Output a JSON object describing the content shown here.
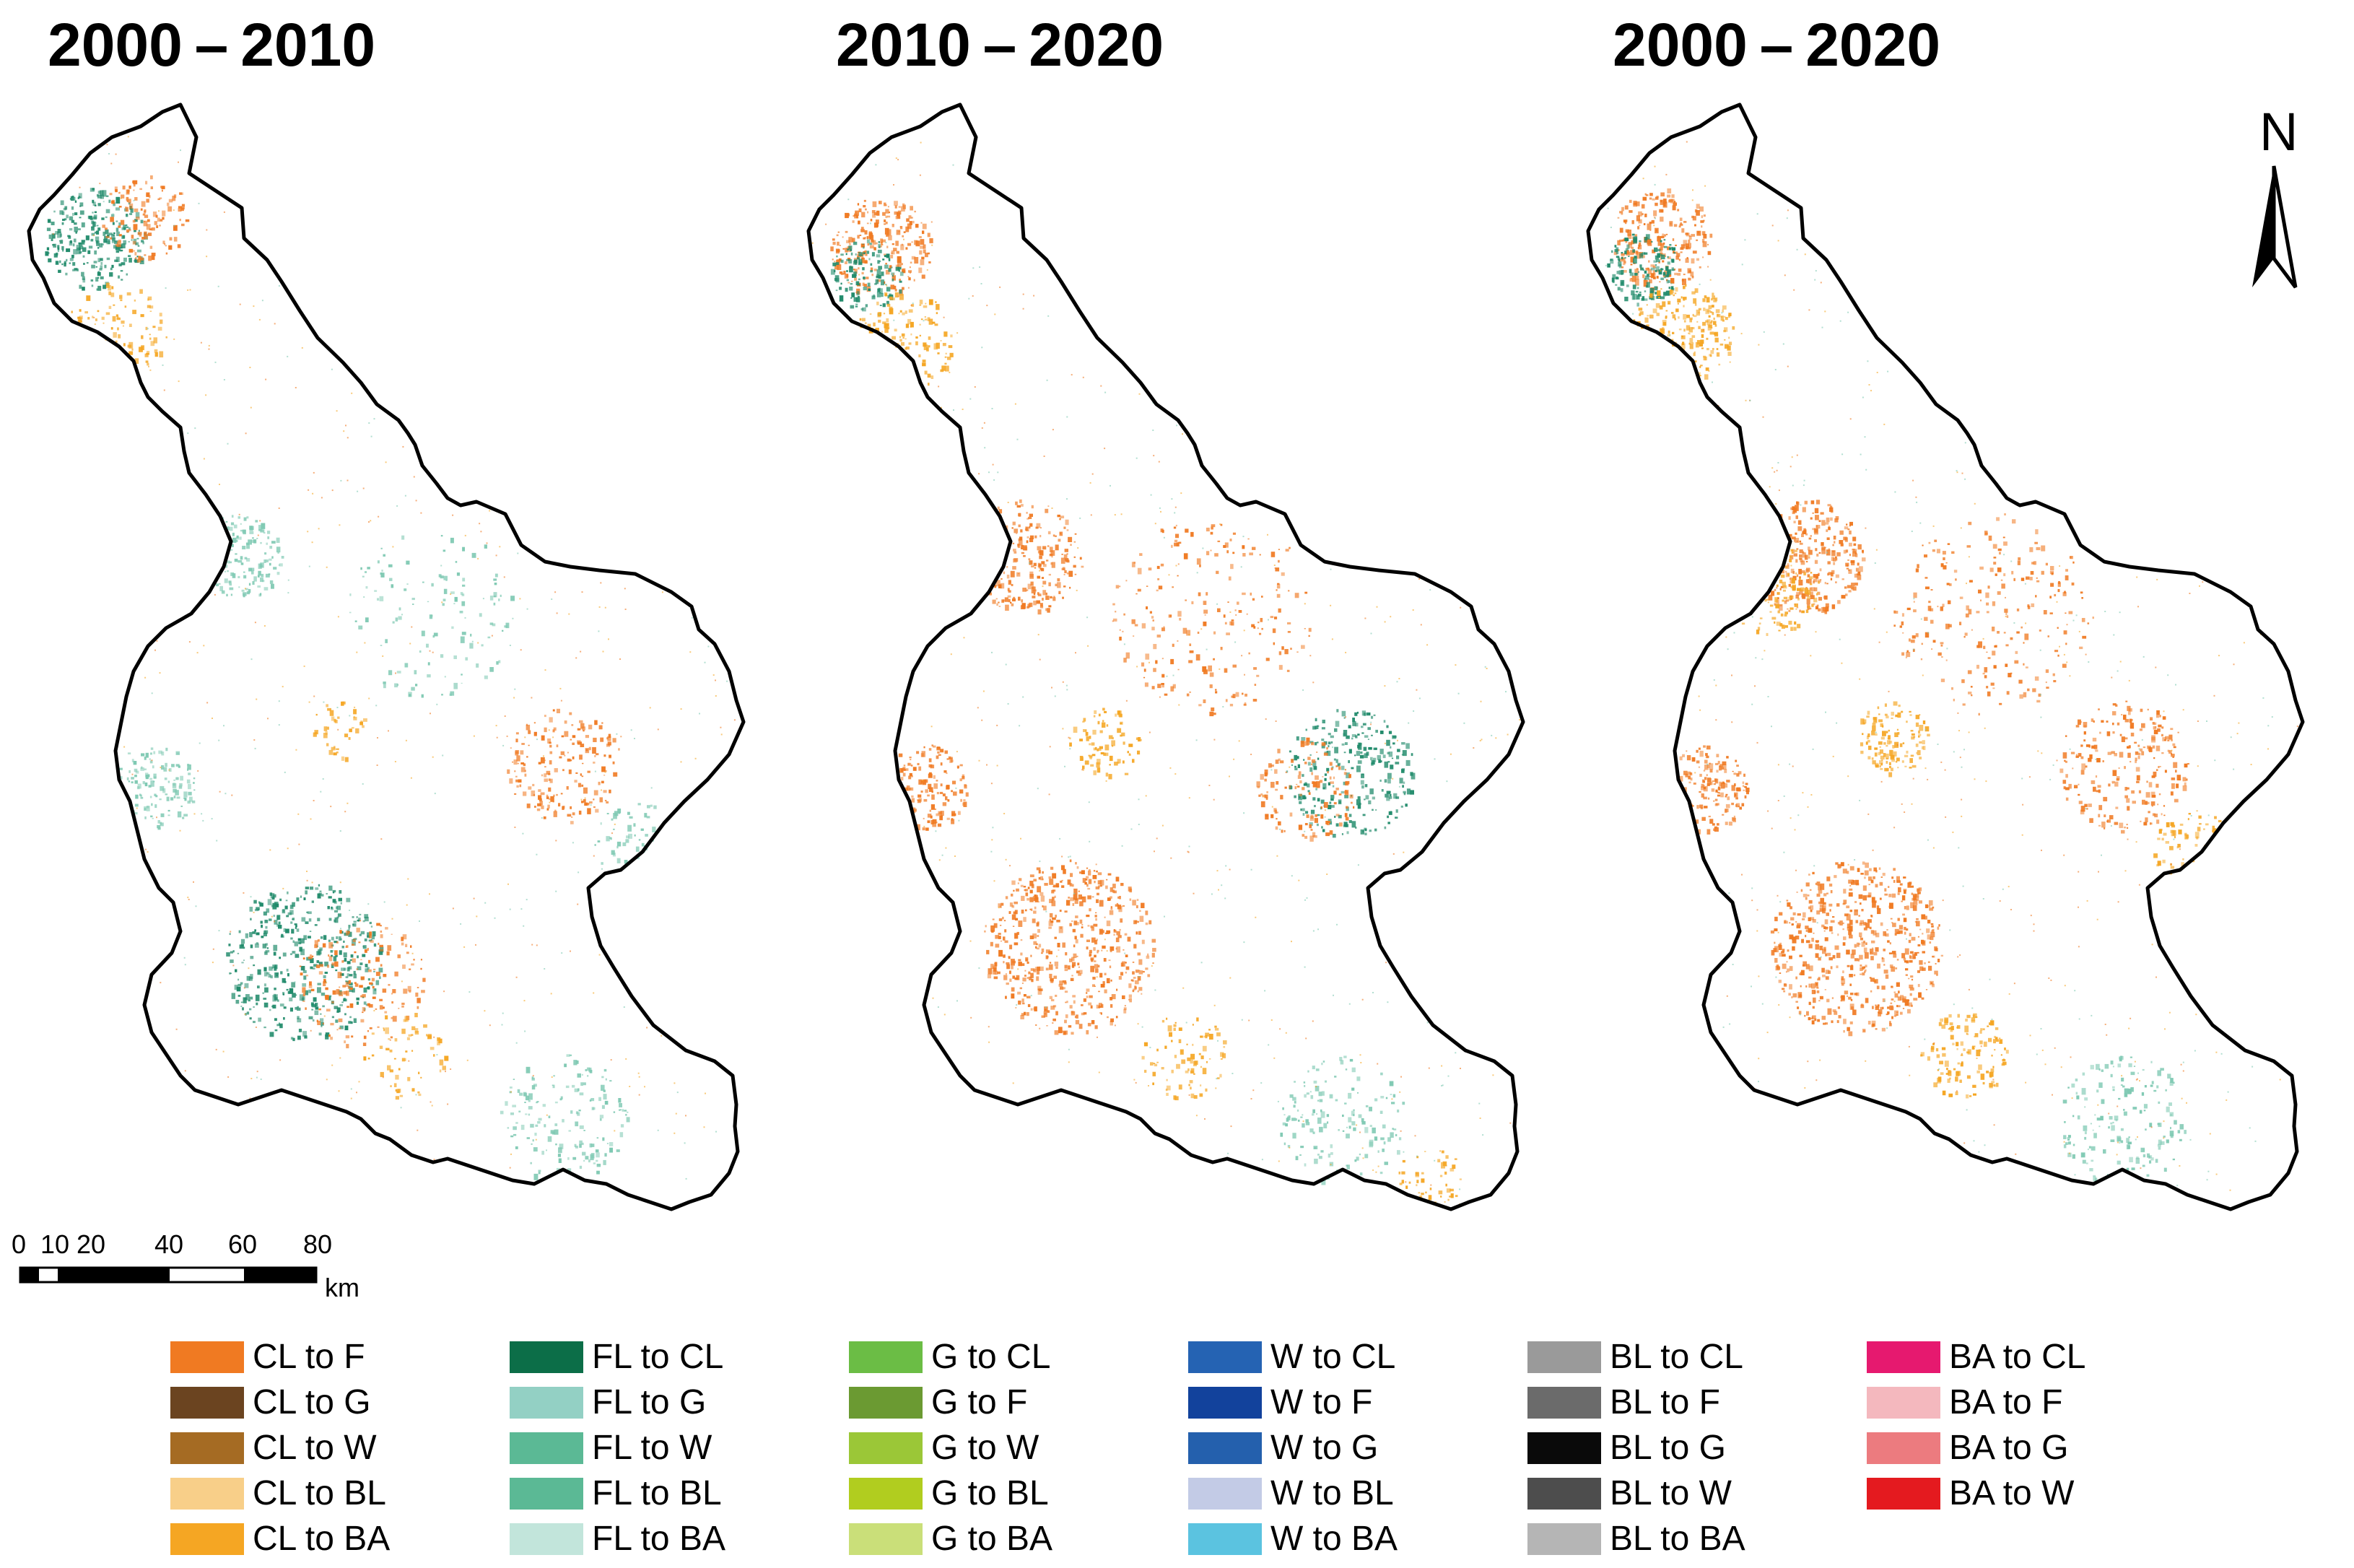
{
  "panels": [
    {
      "title": "2000 – 2010"
    },
    {
      "title": "2010 – 2020"
    },
    {
      "title": "2000 – 2020"
    }
  ],
  "north_arrow": {
    "label": "N"
  },
  "scale_bar": {
    "ticks": [
      "0",
      "10",
      "20",
      "40",
      "60",
      "80"
    ],
    "unit": "km"
  },
  "colors": {
    "boundary": "#000000",
    "cl_orange": "#f07a22",
    "ba_yellow": "#f5a623",
    "fl_green": "#1f8a6a",
    "fl_light": "#7fc9b3"
  },
  "legend": {
    "columns": [
      [
        {
          "label": "CL to F",
          "color": "#f07a22"
        },
        {
          "label": "CL to G",
          "color": "#6b4420"
        },
        {
          "label": "CL to W",
          "color": "#a56b23"
        },
        {
          "label": "CL to BL",
          "color": "#f8cf89"
        },
        {
          "label": "CL to BA",
          "color": "#f5a623"
        }
      ],
      [
        {
          "label": "FL to CL",
          "color": "#0c6e48"
        },
        {
          "label": "FL to G",
          "color": "#93d0c4"
        },
        {
          "label": "FL to W",
          "color": "#5bb995"
        },
        {
          "label": "FL to BL",
          "color": "#5bb995"
        },
        {
          "label": "FL to BA",
          "color": "#c2e5db"
        }
      ],
      [
        {
          "label": "G to CL",
          "color": "#6bbd45"
        },
        {
          "label": "G to F",
          "color": "#6b9a32"
        },
        {
          "label": "G to W",
          "color": "#9bc737"
        },
        {
          "label": "G to BL",
          "color": "#b1cd1f"
        },
        {
          "label": "G to BA",
          "color": "#cadf79"
        }
      ],
      [
        {
          "label": "W to CL",
          "color": "#2563b3"
        },
        {
          "label": "W to F",
          "color": "#12429c"
        },
        {
          "label": "W to G",
          "color": "#2460ad"
        },
        {
          "label": "W to BL",
          "color": "#c3cbe6"
        },
        {
          "label": "W to BA",
          "color": "#5bc3e0"
        }
      ],
      [
        {
          "label": "BL to CL",
          "color": "#9a9a9a"
        },
        {
          "label": "BL to F",
          "color": "#6b6b6b"
        },
        {
          "label": "BL to G",
          "color": "#0a0a0a"
        },
        {
          "label": "BL to W",
          "color": "#4d4d4d"
        },
        {
          "label": "BL to BA",
          "color": "#b5b5b5"
        }
      ],
      [
        {
          "label": "BA to CL",
          "color": "#e6196f"
        },
        {
          "label": "BA to F",
          "color": "#f4b8be"
        },
        {
          "label": "BA to G",
          "color": "#ec7b7f"
        },
        {
          "label": "BA to W",
          "color": "#e41a1f"
        }
      ]
    ]
  }
}
